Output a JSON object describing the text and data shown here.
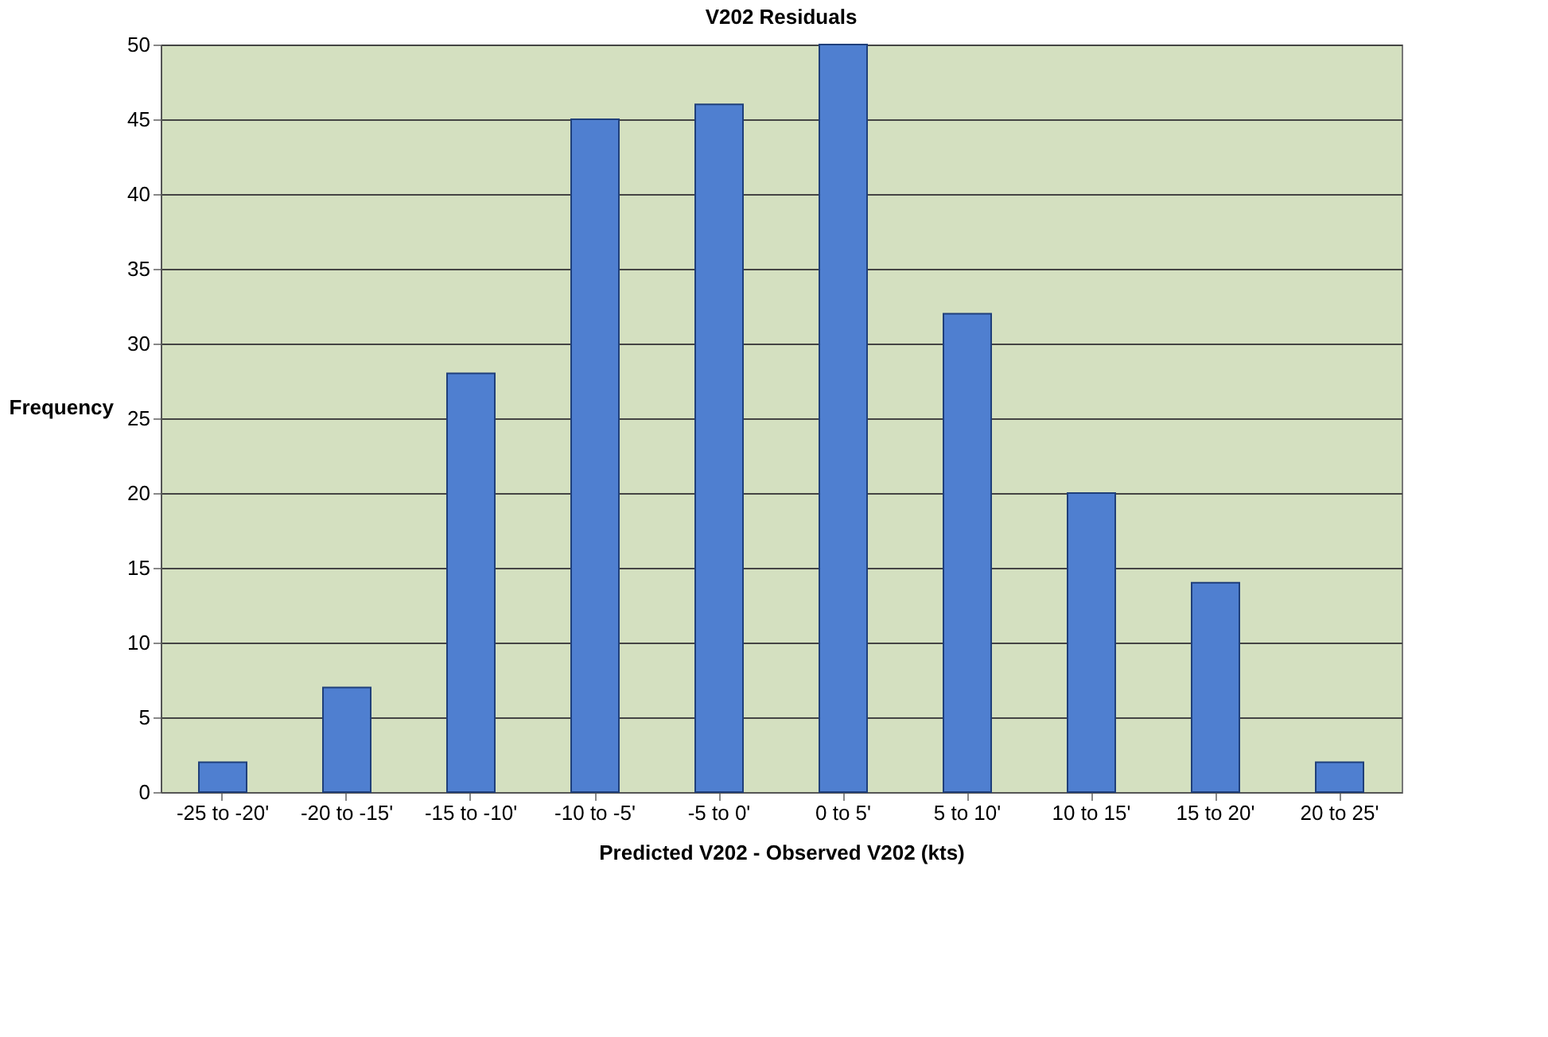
{
  "chart_data": {
    "type": "bar",
    "title": "V202 Residuals",
    "xlabel": "Predicted V202 - Observed V202 (kts)",
    "ylabel": "Frequency",
    "categories": [
      "-25 to -20'",
      "-20 to -15'",
      "-15 to -10'",
      "-10 to -5'",
      "-5 to 0'",
      "0 to 5'",
      "5 to 10'",
      "10 to 15'",
      "15 to 20'",
      "20 to 25'"
    ],
    "values": [
      2,
      7,
      28,
      45,
      46,
      50,
      32,
      20,
      14,
      2
    ],
    "color": "#4f7fd0",
    "ylim": [
      0,
      50
    ],
    "yticks": [
      0,
      5,
      10,
      15,
      20,
      25,
      30,
      35,
      40,
      45,
      50
    ],
    "grid": "y"
  }
}
